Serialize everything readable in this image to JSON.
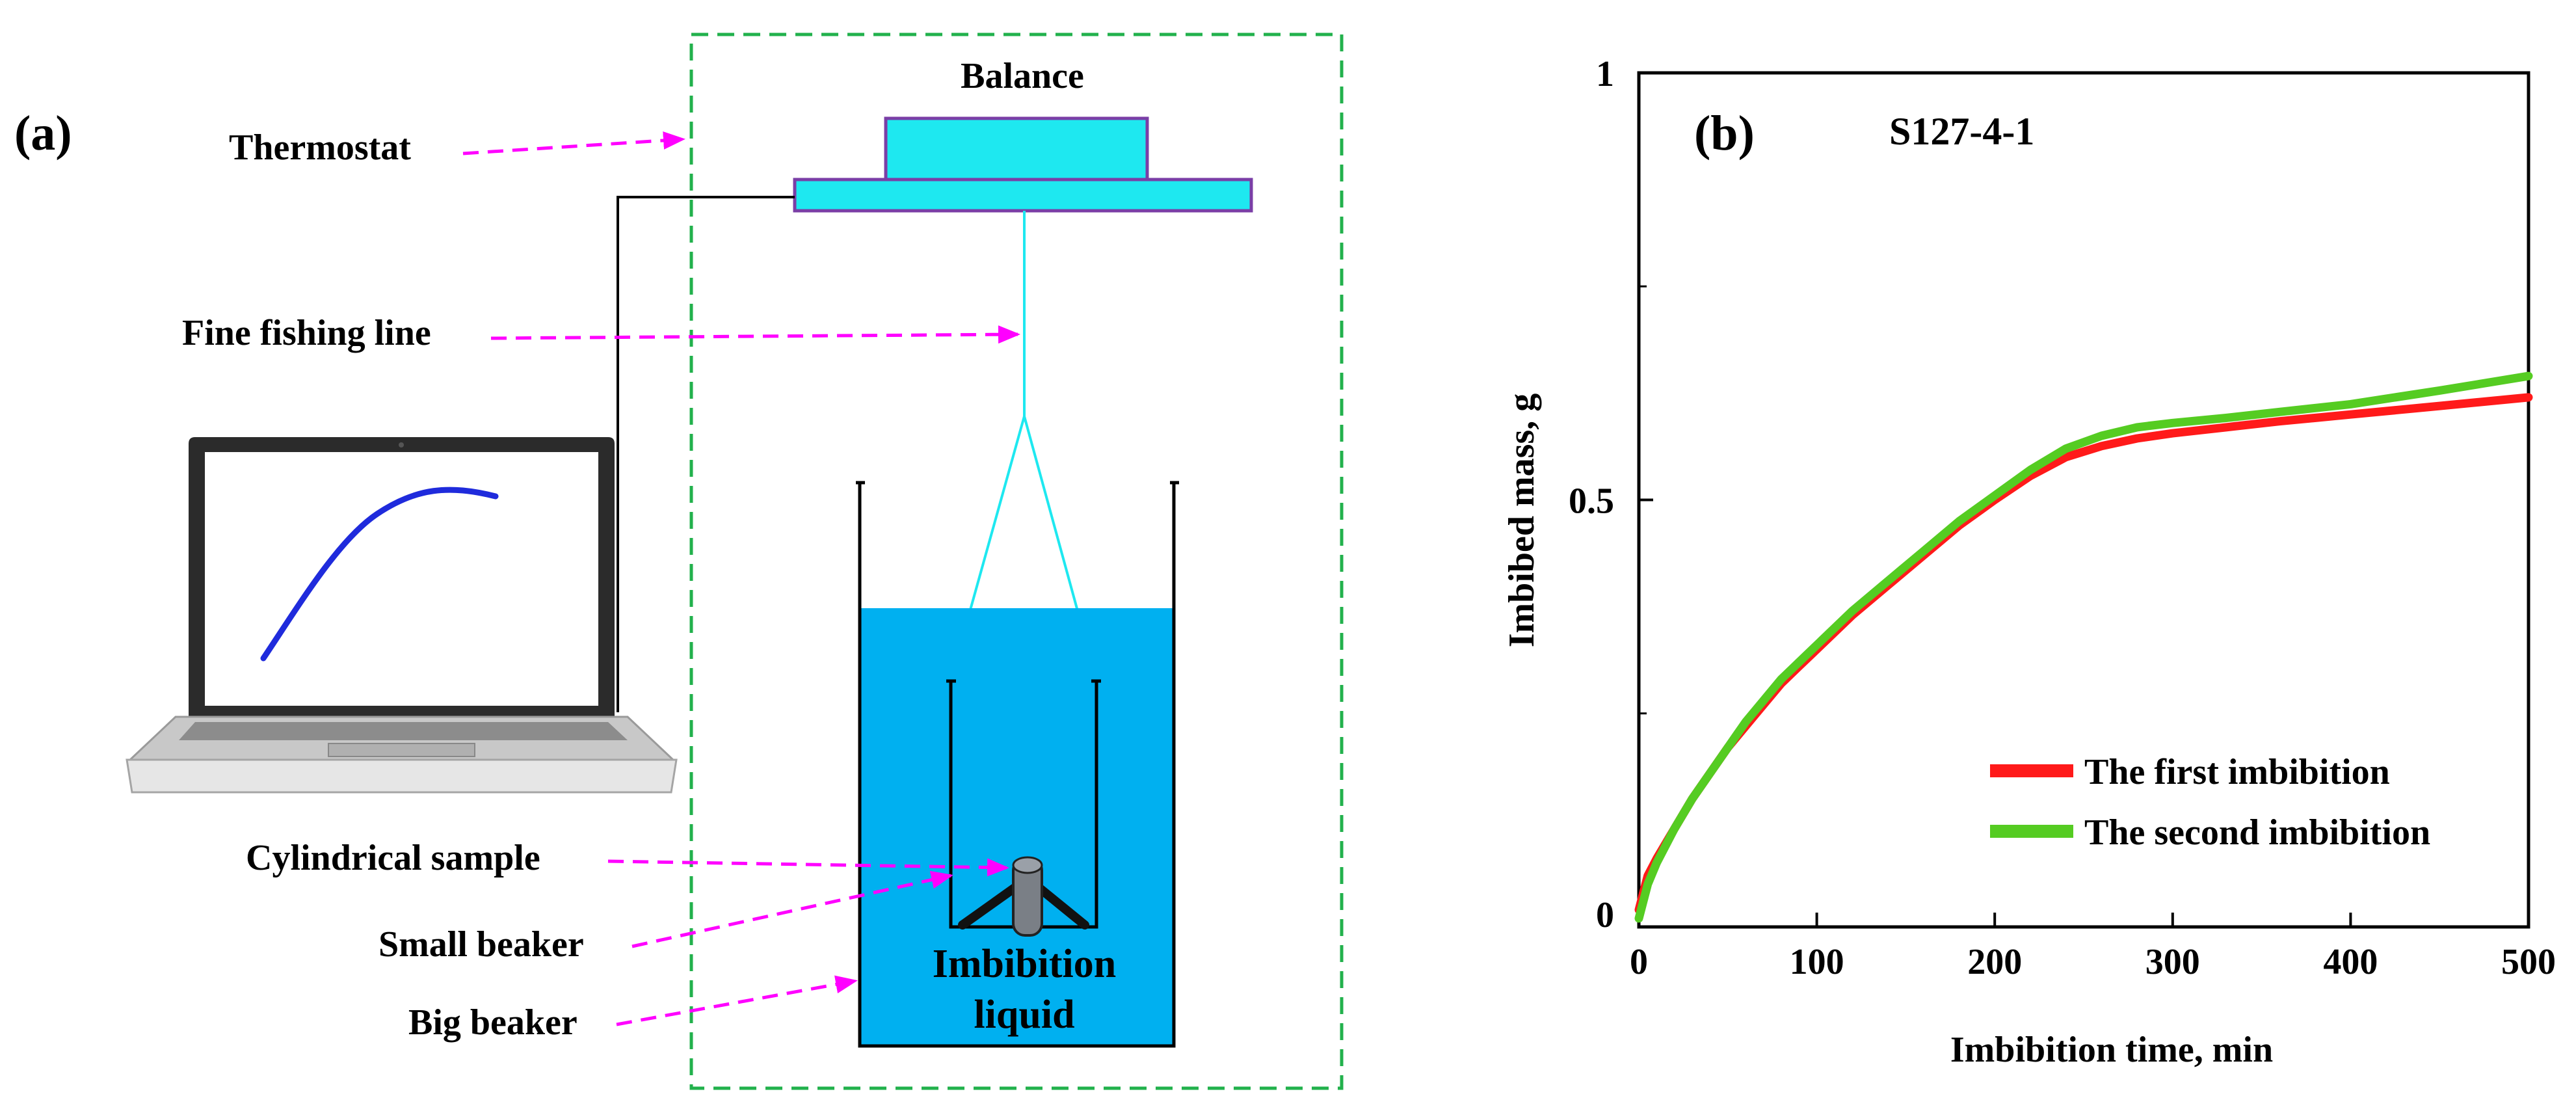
{
  "colors": {
    "magenta_arrow": "#ff00ff",
    "thermostat_border": "#22b14c",
    "balance_fill": "#1ee8f0",
    "balance_border": "#7a3ea6",
    "fishing_line": "#1ee8f0",
    "liquid": "#00b0f0",
    "laptop_curve": "#1f2bdc",
    "series_first": "#ff1a1a",
    "series_second": "#55cc22"
  },
  "diagram": {
    "panel_label": "(a)",
    "balance_label": "Balance",
    "thermostat_label": "Thermostat",
    "fishing_line_label": "Fine fishing line",
    "cylindrical_sample_label": "Cylindrical sample",
    "small_beaker_label": "Small beaker",
    "big_beaker_label": "Big beaker",
    "liquid_label_line1": "Imbibition",
    "liquid_label_line2": "liquid",
    "icons": [
      "laptop-icon",
      "balance-icon",
      "beaker-icon",
      "sample-icon"
    ]
  },
  "chart_data": {
    "type": "line",
    "panel_label": "(b)",
    "title": "S127-4-1",
    "xlabel": "Imbibition time, min",
    "ylabel": "Imbibed mass, g",
    "xlim": [
      0,
      500
    ],
    "ylim": [
      0,
      1
    ],
    "x_ticks": [
      0,
      100,
      200,
      300,
      400,
      500
    ],
    "x_tick_labels": [
      "0",
      "100",
      "200",
      "300",
      "400",
      "500"
    ],
    "y_major_ticks": [
      0,
      0.5,
      1
    ],
    "y_tick_labels": [
      "0",
      "0.5",
      "1"
    ],
    "y_minor_ticks": [
      0.25,
      0.75
    ],
    "legend_position": "bottom-right",
    "series": [
      {
        "name": "The first imbibition",
        "color_key": "series_first",
        "x": [
          0,
          5,
          10,
          20,
          30,
          40,
          50,
          60,
          70,
          80,
          90,
          100,
          120,
          140,
          160,
          180,
          200,
          220,
          240,
          260,
          280,
          300,
          330,
          360,
          400,
          450,
          500
        ],
        "y": [
          0.02,
          0.06,
          0.08,
          0.115,
          0.15,
          0.18,
          0.21,
          0.235,
          0.26,
          0.285,
          0.305,
          0.325,
          0.365,
          0.4,
          0.435,
          0.47,
          0.5,
          0.528,
          0.55,
          0.563,
          0.572,
          0.578,
          0.585,
          0.592,
          0.6,
          0.61,
          0.62
        ]
      },
      {
        "name": "The second imbibition",
        "color_key": "series_second",
        "x": [
          0,
          5,
          10,
          20,
          30,
          40,
          50,
          60,
          70,
          80,
          90,
          100,
          120,
          140,
          160,
          180,
          200,
          220,
          240,
          260,
          280,
          300,
          330,
          360,
          400,
          450,
          500
        ],
        "y": [
          0.01,
          0.05,
          0.075,
          0.115,
          0.15,
          0.18,
          0.21,
          0.24,
          0.265,
          0.29,
          0.31,
          0.33,
          0.37,
          0.405,
          0.44,
          0.475,
          0.505,
          0.535,
          0.56,
          0.575,
          0.585,
          0.59,
          0.596,
          0.603,
          0.612,
          0.628,
          0.645
        ]
      }
    ]
  }
}
